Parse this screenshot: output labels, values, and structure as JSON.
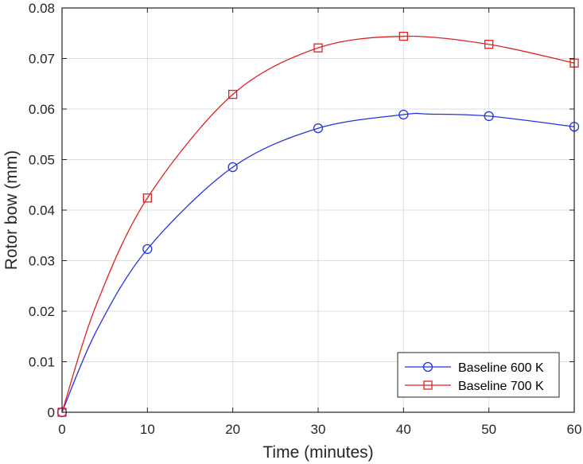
{
  "chart_data": {
    "type": "line",
    "title": "",
    "xlabel": "Time (minutes)",
    "ylabel": "Rotor bow (mm)",
    "xlim": [
      0,
      60
    ],
    "ylim": [
      0,
      0.08
    ],
    "x_ticks": [
      0,
      10,
      20,
      30,
      40,
      50,
      60
    ],
    "x_tick_labels": [
      "0",
      "10",
      "20",
      "30",
      "40",
      "50",
      "60"
    ],
    "y_ticks": [
      0,
      0.01,
      0.02,
      0.03,
      0.04,
      0.05,
      0.06,
      0.07,
      0.08
    ],
    "y_tick_labels": [
      "0",
      "0.01",
      "0.02",
      "0.03",
      "0.04",
      "0.05",
      "0.06",
      "0.07",
      "0.08"
    ],
    "grid": true,
    "legend_position": "lower right",
    "x": [
      0,
      10,
      20,
      30,
      40,
      50,
      60
    ],
    "series": [
      {
        "name": "Baseline 600 K",
        "color": "#2233dd",
        "marker": "circle",
        "values": [
          0,
          0.0323,
          0.0485,
          0.0562,
          0.0589,
          0.0586,
          0.0565
        ],
        "curve_x": [
          0,
          4,
          10,
          20,
          30,
          40,
          43,
          50,
          60
        ],
        "curve_y": [
          0,
          0.016,
          0.0323,
          0.0485,
          0.0562,
          0.0589,
          0.059,
          0.0586,
          0.0565
        ]
      },
      {
        "name": "Baseline 700 K",
        "color": "#dd2222",
        "marker": "square",
        "values": [
          0,
          0.0424,
          0.0629,
          0.0721,
          0.0744,
          0.0728,
          0.0691
        ],
        "curve_x": [
          0,
          4,
          10,
          20,
          30,
          40,
          50,
          60
        ],
        "curve_y": [
          0,
          0.0212,
          0.0424,
          0.0629,
          0.0721,
          0.0744,
          0.0728,
          0.0691
        ]
      }
    ]
  },
  "legend": {
    "items": [
      {
        "label": "Baseline 600 K"
      },
      {
        "label": "Baseline 700 K"
      }
    ]
  },
  "axes": {
    "xlabel": "Time (minutes)",
    "ylabel": "Rotor bow (mm)"
  }
}
